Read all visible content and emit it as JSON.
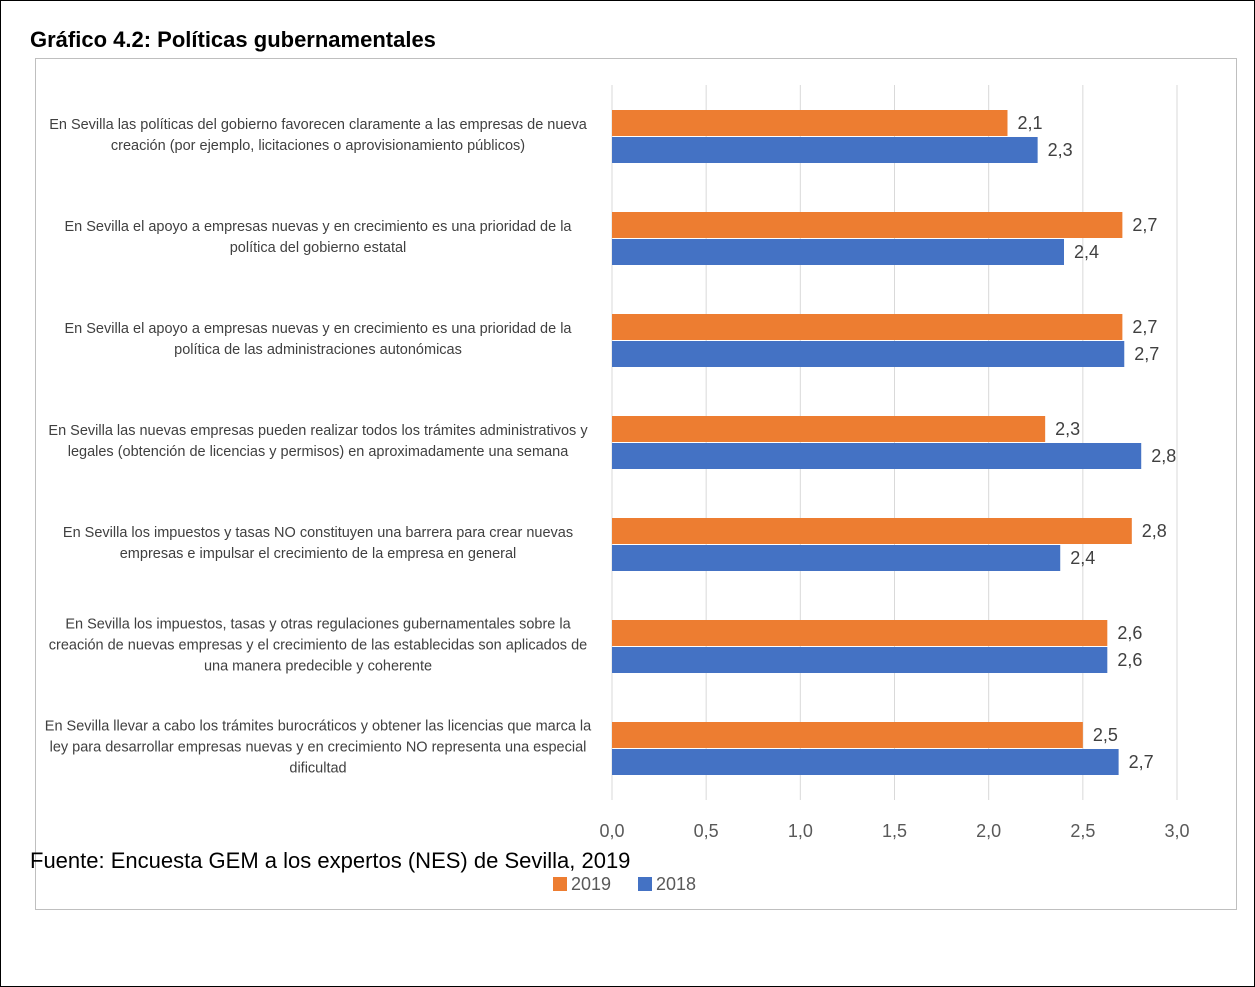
{
  "chart_data": {
    "type": "barh",
    "title": "Gráfico 4.2: Políticas gubernamentales",
    "source": "Fuente: Encuesta GEM a los expertos (NES) de Sevilla, 2019",
    "categories": [
      "En Sevilla las políticas del gobierno favorecen claramente a las empresas de nueva creación (por ejemplo, licitaciones o aprovisionamiento públicos)",
      "En Sevilla el apoyo a empresas nuevas y en crecimiento es una prioridad de la política del gobierno estatal",
      "En Sevilla el apoyo a empresas nuevas y en crecimiento es una prioridad de la política de las administraciones autonómicas",
      "En Sevilla las nuevas empresas pueden realizar todos los trámites administrativos y legales (obtención de licencias y permisos) en aproximadamente una semana",
      "En Sevilla los impuestos y tasas NO constituyen una barrera para crear nuevas empresas e impulsar el crecimiento de la empresa en general",
      "En Sevilla los impuestos, tasas y otras regulaciones gubernamentales sobre la creación de nuevas empresas y el crecimiento de las establecidas son aplicados de una manera predecible y coherente",
      "En Sevilla llevar a cabo los trámites burocráticos y obtener las licencias que marca la ley para desarrollar empresas nuevas y en crecimiento NO representa una especial dificultad"
    ],
    "series": [
      {
        "name": "2019",
        "color": "#ed7d31",
        "values": [
          2.1,
          2.71,
          2.71,
          2.3,
          2.76,
          2.63,
          2.5
        ],
        "value_labels": [
          "2,1",
          "2,7",
          "2,7",
          "2,3",
          "2,8",
          "2,6",
          "2,5"
        ]
      },
      {
        "name": "2018",
        "color": "#4472c4",
        "values": [
          2.26,
          2.4,
          2.72,
          2.81,
          2.38,
          2.63,
          2.69
        ],
        "value_labels": [
          "2,3",
          "2,4",
          "2,7",
          "2,8",
          "2,4",
          "2,6",
          "2,7"
        ]
      }
    ],
    "xlim": [
      0,
      3
    ],
    "xticks": [
      {
        "value": 0,
        "label": "0,0"
      },
      {
        "value": 0.5,
        "label": "0,5"
      },
      {
        "value": 1,
        "label": "1,0"
      },
      {
        "value": 1.5,
        "label": "1,5"
      },
      {
        "value": 2,
        "label": "2,0"
      },
      {
        "value": 2.5,
        "label": "2,5"
      },
      {
        "value": 3,
        "label": "3,0"
      }
    ],
    "grid": true,
    "legend": "bottom"
  }
}
